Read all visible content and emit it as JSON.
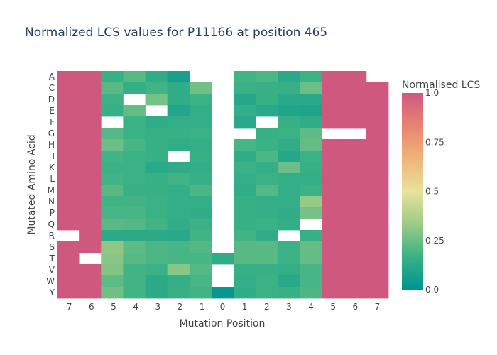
{
  "chart_data": {
    "type": "heatmap",
    "title": "Normalized LCS values for P11166 at position 465",
    "xlabel": "Mutation Position",
    "ylabel": "Mutated Amino Acid",
    "x": [
      "-7",
      "-6",
      "-5",
      "-4",
      "-3",
      "-2",
      "-1",
      "0",
      "1",
      "2",
      "3",
      "4",
      "5",
      "6",
      "7"
    ],
    "y": [
      "A",
      "C",
      "D",
      "E",
      "F",
      "G",
      "H",
      "I",
      "K",
      "L",
      "M",
      "N",
      "P",
      "Q",
      "R",
      "S",
      "T",
      "V",
      "W",
      "Y"
    ],
    "z": [
      [
        1.0,
        1.0,
        0.16,
        0.22,
        0.14,
        0.07,
        null,
        null,
        0.18,
        0.2,
        0.12,
        0.17,
        1.0,
        1.0,
        null
      ],
      [
        1.0,
        1.0,
        0.22,
        0.15,
        0.18,
        0.14,
        0.26,
        null,
        0.17,
        0.16,
        0.16,
        0.25,
        1.0,
        1.0,
        1.0
      ],
      [
        1.0,
        1.0,
        0.17,
        null,
        0.27,
        0.14,
        0.17,
        null,
        0.11,
        0.16,
        0.12,
        0.12,
        1.0,
        1.0,
        1.0
      ],
      [
        1.0,
        1.0,
        0.16,
        0.24,
        null,
        0.1,
        0.15,
        null,
        0.15,
        0.12,
        0.1,
        0.09,
        1.0,
        1.0,
        1.0
      ],
      [
        1.0,
        1.0,
        null,
        0.17,
        0.14,
        0.15,
        0.15,
        null,
        0.12,
        null,
        0.16,
        0.14,
        1.0,
        1.0,
        1.0
      ],
      [
        1.0,
        1.0,
        0.21,
        0.17,
        0.16,
        0.16,
        0.17,
        null,
        null,
        0.16,
        0.17,
        0.23,
        null,
        null,
        1.0
      ],
      [
        1.0,
        1.0,
        0.25,
        0.19,
        0.16,
        0.14,
        0.15,
        null,
        0.19,
        0.17,
        0.14,
        0.24,
        1.0,
        1.0,
        1.0
      ],
      [
        1.0,
        1.0,
        0.18,
        0.17,
        0.16,
        null,
        0.16,
        null,
        0.14,
        0.2,
        0.11,
        0.17,
        1.0,
        1.0,
        1.0
      ],
      [
        1.0,
        1.0,
        0.17,
        0.17,
        0.12,
        0.14,
        0.15,
        null,
        0.17,
        0.15,
        0.25,
        0.16,
        1.0,
        1.0,
        1.0
      ],
      [
        1.0,
        1.0,
        0.18,
        0.17,
        0.16,
        0.18,
        0.16,
        null,
        0.15,
        0.17,
        0.15,
        0.15,
        1.0,
        1.0,
        1.0
      ],
      [
        1.0,
        1.0,
        0.22,
        0.16,
        0.16,
        0.15,
        0.2,
        null,
        0.14,
        0.21,
        0.15,
        0.17,
        1.0,
        1.0,
        1.0
      ],
      [
        1.0,
        1.0,
        0.18,
        0.18,
        0.17,
        0.15,
        0.15,
        null,
        0.16,
        0.15,
        0.15,
        0.32,
        1.0,
        1.0,
        1.0
      ],
      [
        1.0,
        1.0,
        0.19,
        0.19,
        0.17,
        0.15,
        0.14,
        null,
        0.16,
        0.15,
        0.14,
        0.27,
        1.0,
        1.0,
        1.0
      ],
      [
        1.0,
        1.0,
        0.22,
        0.21,
        0.18,
        0.14,
        0.17,
        null,
        0.16,
        0.17,
        0.15,
        null,
        1.0,
        1.0,
        1.0
      ],
      [
        null,
        1.0,
        0.13,
        0.13,
        0.13,
        0.12,
        0.18,
        null,
        0.18,
        0.14,
        null,
        0.16,
        1.0,
        1.0,
        1.0
      ],
      [
        1.0,
        1.0,
        0.31,
        0.23,
        0.2,
        0.19,
        0.21,
        null,
        0.22,
        0.22,
        0.17,
        0.24,
        1.0,
        1.0,
        1.0
      ],
      [
        1.0,
        null,
        0.3,
        0.22,
        0.2,
        0.19,
        0.19,
        0.14,
        0.22,
        0.22,
        0.17,
        0.24,
        1.0,
        1.0,
        1.0
      ],
      [
        1.0,
        1.0,
        0.29,
        0.18,
        0.17,
        0.3,
        0.21,
        null,
        0.16,
        0.16,
        0.15,
        0.19,
        1.0,
        1.0,
        1.0
      ],
      [
        1.0,
        1.0,
        0.23,
        0.18,
        0.13,
        0.15,
        0.19,
        null,
        0.15,
        0.17,
        0.12,
        0.19,
        1.0,
        1.0,
        1.0
      ],
      [
        1.0,
        1.0,
        0.26,
        0.18,
        0.13,
        0.16,
        0.18,
        0.02,
        0.14,
        0.17,
        0.16,
        0.2,
        1.0,
        1.0,
        1.0
      ]
    ],
    "zmin": 0,
    "zmax": 1,
    "colorscale": [
      "#009392",
      "#39b185",
      "#9ccb86",
      "#e9e29c",
      "#eeb479",
      "#e88471",
      "#cf597e"
    ],
    "colorbar": {
      "title": "Normalised LCS",
      "ticks": [
        1.0,
        0.75,
        0.5,
        0.25,
        0.0
      ],
      "ticktext": [
        "1.0",
        "0.75",
        "0.5",
        "0.25",
        "0.0"
      ]
    },
    "grid": false
  }
}
